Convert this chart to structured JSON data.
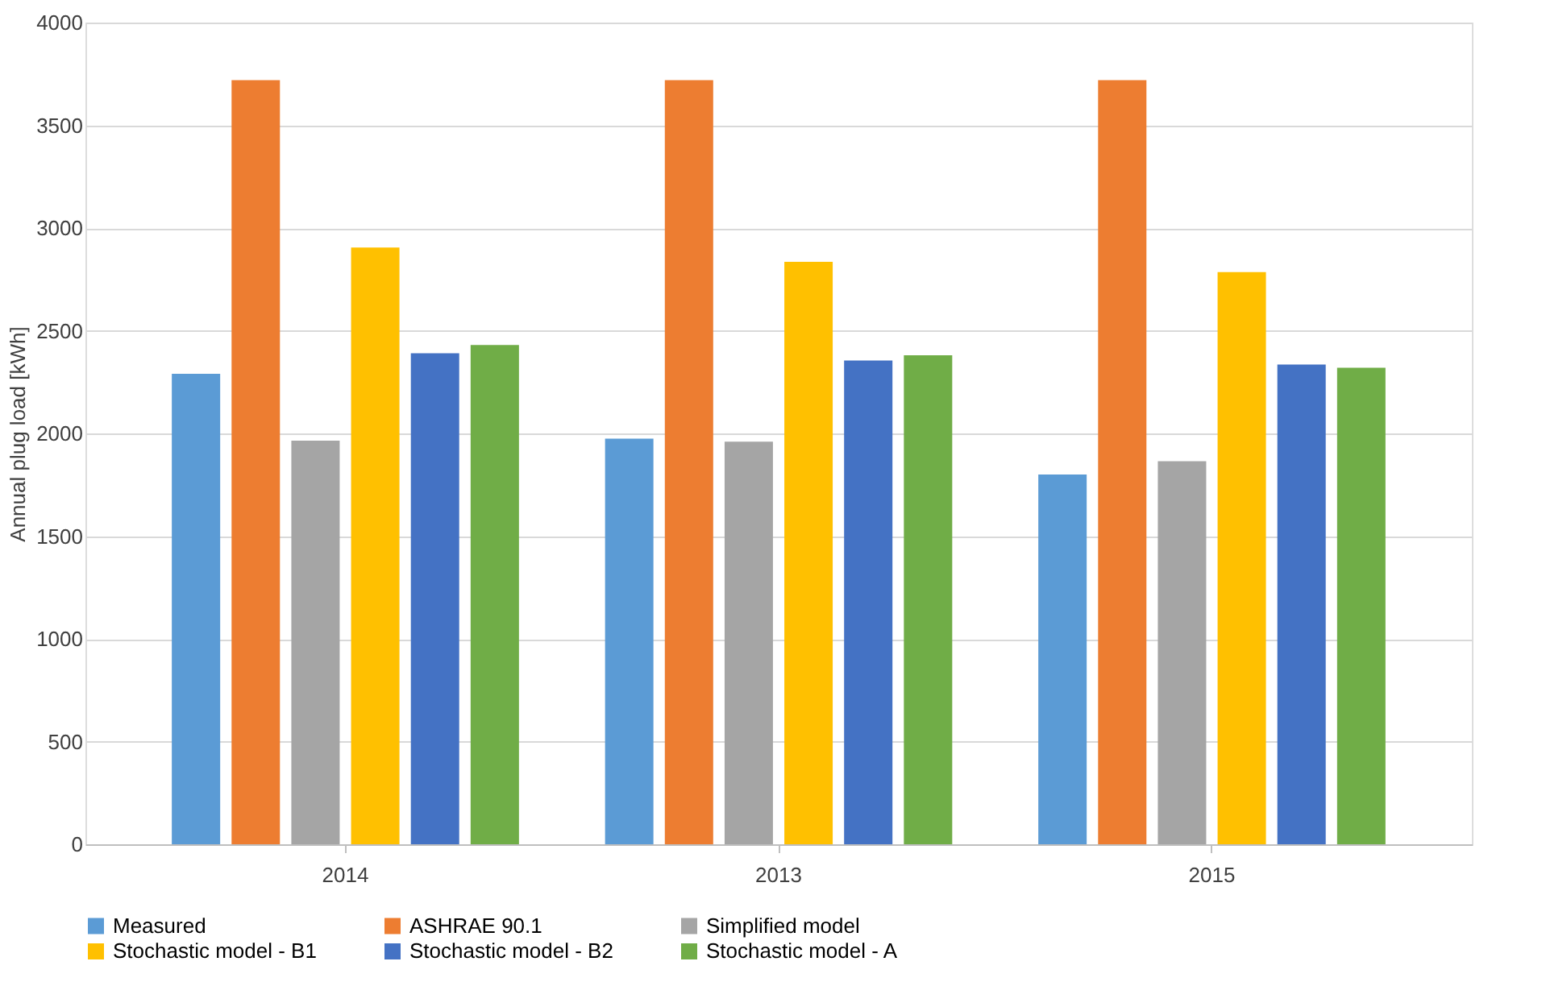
{
  "chart_data": {
    "type": "bar",
    "ylabel": "Annual plug load [kWh]",
    "categories": [
      "2014",
      "2013",
      "2015"
    ],
    "series": [
      {
        "name": "Measured",
        "color": "#5b9bd5",
        "values": [
          2290,
          1975,
          1800
        ]
      },
      {
        "name": "ASHRAE 90.1",
        "color": "#ed7d31",
        "values": [
          3720,
          3720,
          3720
        ]
      },
      {
        "name": "Simplified model",
        "color": "#a5a5a5",
        "values": [
          1965,
          1960,
          1865
        ]
      },
      {
        "name": "Stochastic model - B1",
        "color": "#ffc000",
        "values": [
          2905,
          2835,
          2785
        ]
      },
      {
        "name": "Stochastic model - B2",
        "color": "#4472c4",
        "values": [
          2390,
          2355,
          2335
        ]
      },
      {
        "name": "Stochastic model - A",
        "color": "#70ad47",
        "values": [
          2430,
          2380,
          2320
        ]
      }
    ],
    "ylim": [
      0,
      4000
    ],
    "yticks": [
      0,
      500,
      1000,
      1500,
      2000,
      2500,
      3000,
      3500,
      4000
    ],
    "grid": "y",
    "legend": "bottom"
  }
}
